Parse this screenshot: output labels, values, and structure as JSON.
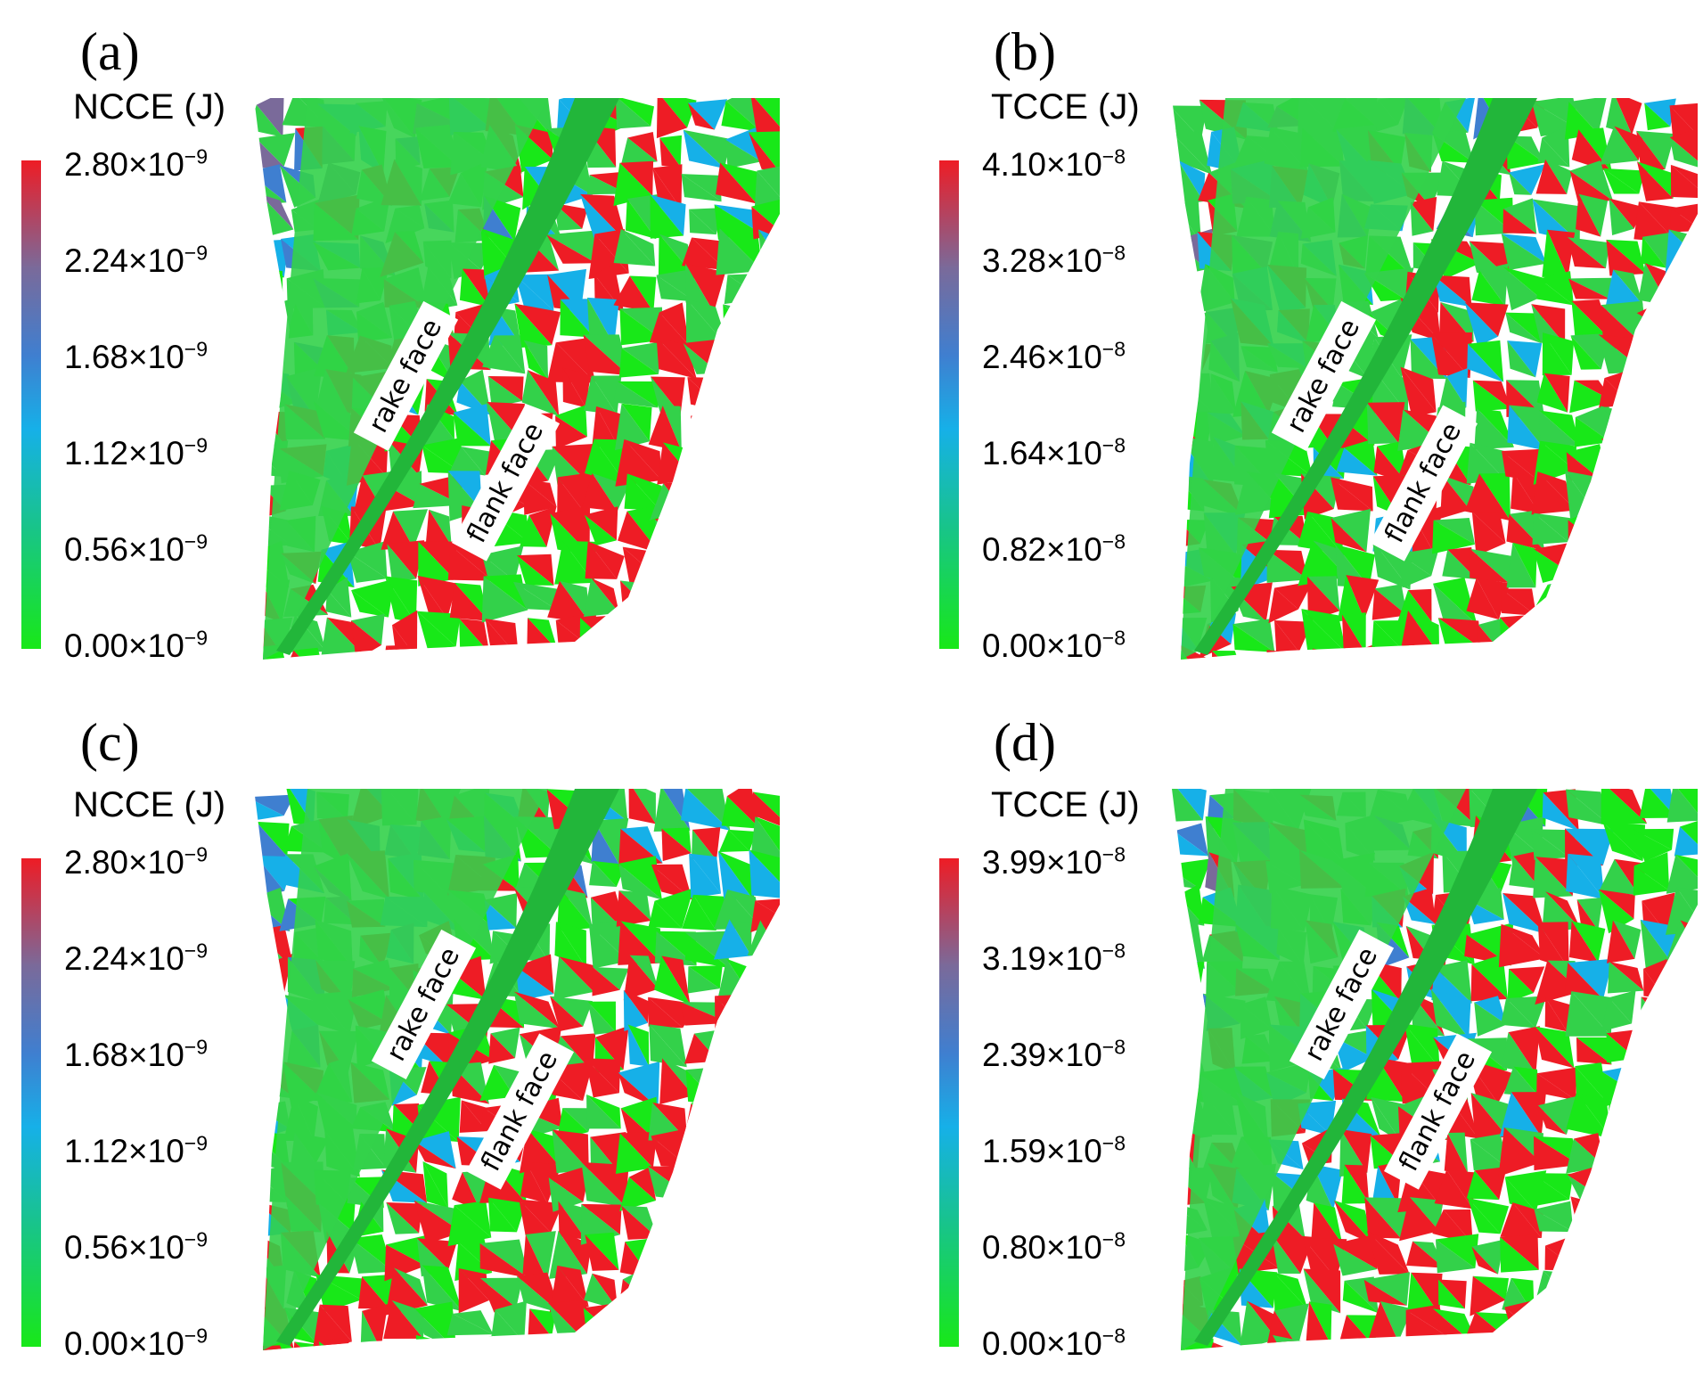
{
  "panels": [
    {
      "letter": "(a)",
      "cb_title": "NCCE (J)",
      "ticks": [
        "2.80×10",
        "2.24×10",
        "1.68×10",
        "1.12×10",
        "0.56×10",
        "0.00×10"
      ],
      "exponent": "−9",
      "face_labels": [
        "rake face",
        "flank face"
      ]
    },
    {
      "letter": "(b)",
      "cb_title": "TCCE (J)",
      "ticks": [
        "4.10×10",
        "3.28×10",
        "2.46×10",
        "1.64×10",
        "0.82×10",
        "0.00×10"
      ],
      "exponent": "−8",
      "face_labels": [
        "rake face",
        "flank face"
      ]
    },
    {
      "letter": "(c)",
      "cb_title": "NCCE (J)",
      "ticks": [
        "2.80×10",
        "2.24×10",
        "1.68×10",
        "1.12×10",
        "0.56×10",
        "0.00×10"
      ],
      "exponent": "−9",
      "face_labels": [
        "rake face",
        "flank face"
      ]
    },
    {
      "letter": "(d)",
      "cb_title": "TCCE (J)",
      "ticks": [
        "3.99×10",
        "3.19×10",
        "2.39×10",
        "1.59×10",
        "0.80×10",
        "0.00×10"
      ],
      "exponent": "−8",
      "face_labels": [
        "rake face",
        "flank face"
      ]
    }
  ],
  "colors": {
    "scale_top": "#ee1c25",
    "scale_upper": "#7a6a9a",
    "scale_mid_high": "#3f7fd0",
    "scale_mid": "#16b0e8",
    "scale_low": "#18c48a",
    "scale_bottom": "#18e818",
    "dominant_surface": "#33d14a"
  }
}
